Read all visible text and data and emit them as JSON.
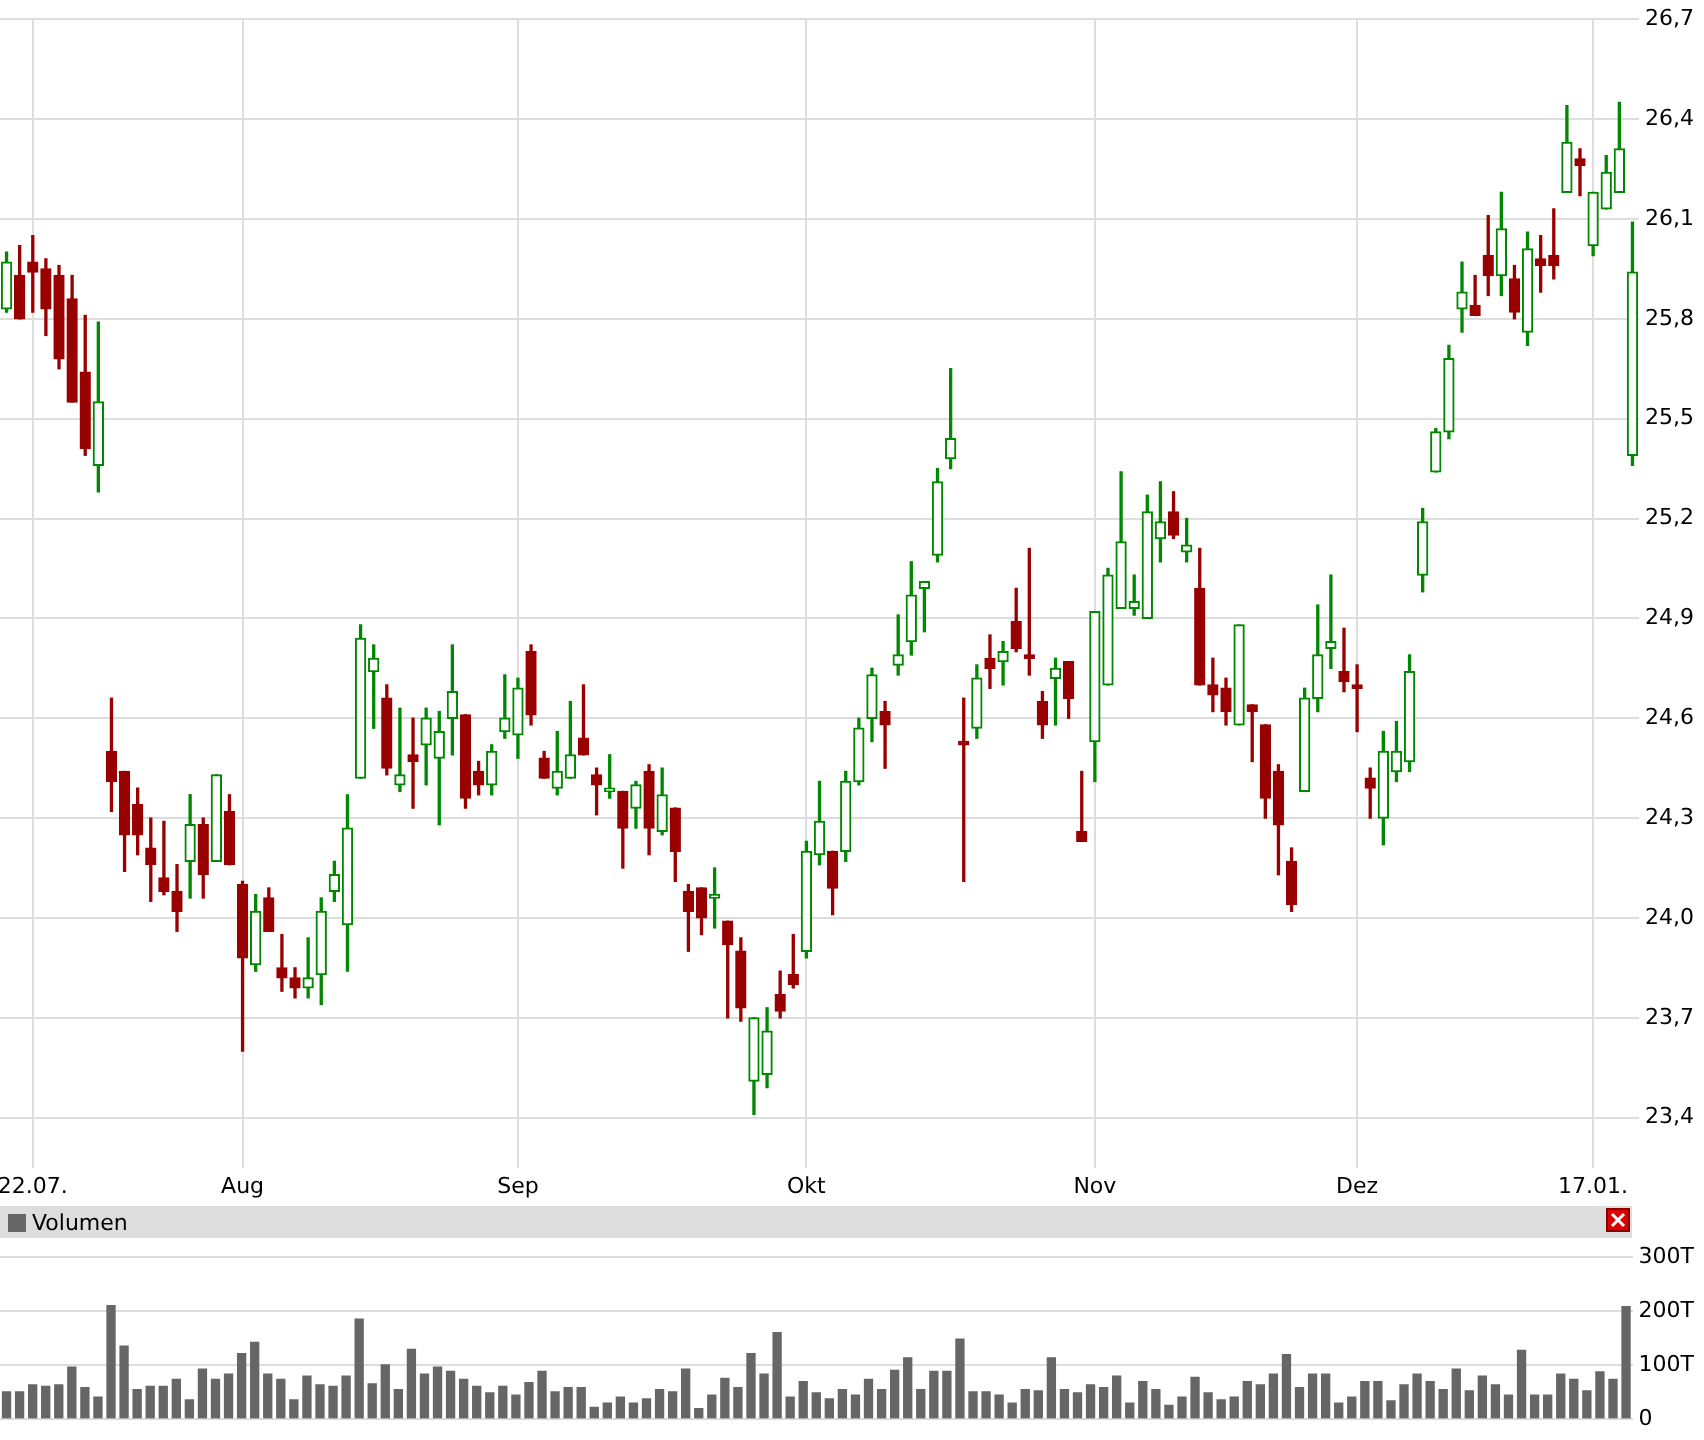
{
  "chart_data": [
    {
      "type": "candlestick",
      "categories": [
        null,
        null,
        "22.07.",
        null,
        null,
        null,
        null,
        null,
        null,
        null,
        null,
        null,
        null,
        null,
        null,
        null,
        null,
        null,
        "Aug",
        null,
        null,
        null,
        null,
        null,
        null,
        null,
        null,
        null,
        null,
        null,
        null,
        null,
        null,
        null,
        null,
        null,
        null,
        null,
        null,
        "Sep",
        null,
        null,
        null,
        null,
        null,
        null,
        null,
        null,
        null,
        null,
        null,
        null,
        null,
        null,
        null,
        null,
        null,
        null,
        null,
        null,
        null,
        "Okt",
        null,
        null,
        null,
        null,
        null,
        null,
        null,
        null,
        null,
        null,
        null,
        null,
        null,
        null,
        null,
        null,
        null,
        null,
        null,
        null,
        null,
        "Nov",
        null,
        null,
        null,
        null,
        null,
        null,
        null,
        null,
        null,
        null,
        null,
        null,
        null,
        null,
        null,
        null,
        null,
        null,
        null,
        "Dez",
        null,
        null,
        null,
        null,
        null,
        null,
        null,
        null,
        null,
        null,
        null,
        null,
        null,
        null,
        null,
        null,
        null,
        "17.01.",
        null,
        null,
        null
      ],
      "ohlc": [
        [
          25.83,
          26.0,
          25.82,
          25.97
        ],
        [
          25.93,
          26.02,
          25.8,
          25.8
        ],
        [
          25.97,
          26.05,
          25.82,
          25.94
        ],
        [
          25.95,
          25.98,
          25.75,
          25.83
        ],
        [
          25.93,
          25.96,
          25.65,
          25.68
        ],
        [
          25.86,
          25.93,
          25.55,
          25.55
        ],
        [
          25.64,
          25.81,
          25.39,
          25.41
        ],
        [
          25.36,
          25.79,
          25.28,
          25.55
        ],
        [
          24.5,
          24.66,
          24.32,
          24.41
        ],
        [
          24.44,
          24.44,
          24.14,
          24.25
        ],
        [
          24.34,
          24.39,
          24.19,
          24.25
        ],
        [
          24.21,
          24.3,
          24.05,
          24.16
        ],
        [
          24.12,
          24.29,
          24.07,
          24.08
        ],
        [
          24.08,
          24.16,
          23.96,
          24.02
        ],
        [
          24.17,
          24.37,
          24.06,
          24.28
        ],
        [
          24.28,
          24.3,
          24.06,
          24.13
        ],
        [
          24.17,
          24.43,
          24.17,
          24.43
        ],
        [
          24.32,
          24.37,
          24.16,
          24.16
        ],
        [
          24.1,
          24.11,
          23.6,
          23.88
        ],
        [
          23.86,
          24.07,
          23.84,
          24.02
        ],
        [
          24.06,
          24.09,
          23.96,
          23.96
        ],
        [
          23.85,
          23.95,
          23.78,
          23.82
        ],
        [
          23.82,
          23.85,
          23.76,
          23.79
        ],
        [
          23.79,
          23.94,
          23.76,
          23.82
        ],
        [
          23.83,
          24.06,
          23.74,
          24.02
        ],
        [
          24.08,
          24.17,
          24.05,
          24.13
        ],
        [
          23.98,
          24.37,
          23.84,
          24.27
        ],
        [
          24.42,
          24.88,
          24.42,
          24.84
        ],
        [
          24.74,
          24.82,
          24.57,
          24.78
        ],
        [
          24.66,
          24.7,
          24.43,
          24.45
        ],
        [
          24.4,
          24.63,
          24.38,
          24.43
        ],
        [
          24.49,
          24.6,
          24.33,
          24.47
        ],
        [
          24.52,
          24.63,
          24.4,
          24.6
        ],
        [
          24.48,
          24.62,
          24.28,
          24.56
        ],
        [
          24.6,
          24.82,
          24.49,
          24.68
        ],
        [
          24.61,
          24.61,
          24.33,
          24.36
        ],
        [
          24.44,
          24.47,
          24.37,
          24.4
        ],
        [
          24.4,
          24.52,
          24.37,
          24.5
        ],
        [
          24.56,
          24.73,
          24.54,
          24.6
        ],
        [
          24.55,
          24.72,
          24.48,
          24.69
        ],
        [
          24.8,
          24.82,
          24.58,
          24.61
        ],
        [
          24.48,
          24.5,
          24.42,
          24.42
        ],
        [
          24.39,
          24.56,
          24.37,
          24.44
        ],
        [
          24.42,
          24.65,
          24.42,
          24.49
        ],
        [
          24.54,
          24.7,
          24.49,
          24.49
        ],
        [
          24.43,
          24.45,
          24.31,
          24.4
        ],
        [
          24.38,
          24.49,
          24.36,
          24.39
        ],
        [
          24.38,
          24.38,
          24.15,
          24.27
        ],
        [
          24.33,
          24.41,
          24.27,
          24.4
        ],
        [
          24.44,
          24.46,
          24.19,
          24.27
        ],
        [
          24.26,
          24.45,
          24.25,
          24.37
        ],
        [
          24.33,
          24.33,
          24.11,
          24.2
        ],
        [
          24.08,
          24.1,
          23.9,
          24.02
        ],
        [
          24.09,
          24.09,
          23.95,
          24.0
        ],
        [
          24.06,
          24.15,
          23.97,
          24.07
        ],
        [
          23.99,
          23.99,
          23.7,
          23.92
        ],
        [
          23.9,
          23.94,
          23.69,
          23.73
        ],
        [
          23.51,
          23.7,
          23.41,
          23.7
        ],
        [
          23.53,
          23.73,
          23.49,
          23.66
        ],
        [
          23.77,
          23.84,
          23.7,
          23.72
        ],
        [
          23.83,
          23.95,
          23.79,
          23.8
        ],
        [
          23.9,
          24.23,
          23.88,
          24.2
        ],
        [
          24.19,
          24.41,
          24.16,
          24.29
        ],
        [
          24.2,
          24.2,
          24.01,
          24.09
        ],
        [
          24.2,
          24.44,
          24.17,
          24.41
        ],
        [
          24.41,
          24.6,
          24.4,
          24.57
        ],
        [
          24.6,
          24.75,
          24.53,
          24.73
        ],
        [
          24.62,
          24.65,
          24.45,
          24.58
        ],
        [
          24.76,
          24.91,
          24.73,
          24.79
        ],
        [
          24.83,
          25.07,
          24.79,
          24.97
        ],
        [
          24.99,
          25.01,
          24.86,
          25.01
        ],
        [
          25.09,
          25.35,
          25.07,
          25.31
        ],
        [
          25.38,
          25.65,
          25.35,
          25.44
        ],
        [
          24.53,
          24.66,
          24.11,
          24.52
        ],
        [
          24.57,
          24.76,
          24.54,
          24.72
        ],
        [
          24.78,
          24.85,
          24.69,
          24.75
        ],
        [
          24.77,
          24.83,
          24.7,
          24.8
        ],
        [
          24.89,
          24.99,
          24.8,
          24.81
        ],
        [
          24.79,
          25.11,
          24.73,
          24.78
        ],
        [
          24.65,
          24.68,
          24.54,
          24.58
        ],
        [
          24.72,
          24.78,
          24.58,
          24.75
        ],
        [
          24.77,
          24.77,
          24.6,
          24.66
        ],
        [
          24.26,
          24.44,
          24.23,
          24.23
        ],
        [
          24.53,
          24.92,
          24.41,
          24.92
        ],
        [
          24.7,
          25.05,
          24.7,
          25.03
        ],
        [
          24.93,
          25.34,
          24.93,
          25.13
        ],
        [
          24.93,
          25.03,
          24.91,
          24.95
        ],
        [
          24.9,
          25.27,
          24.9,
          25.22
        ],
        [
          25.14,
          25.31,
          25.07,
          25.19
        ],
        [
          25.22,
          25.28,
          25.14,
          25.15
        ],
        [
          25.1,
          25.2,
          25.07,
          25.12
        ],
        [
          24.99,
          25.11,
          24.7,
          24.7
        ],
        [
          24.7,
          24.78,
          24.62,
          24.67
        ],
        [
          24.69,
          24.72,
          24.58,
          24.62
        ],
        [
          24.58,
          24.88,
          24.58,
          24.88
        ],
        [
          24.64,
          24.64,
          24.47,
          24.62
        ],
        [
          24.58,
          24.58,
          24.3,
          24.36
        ],
        [
          24.44,
          24.46,
          24.13,
          24.28
        ],
        [
          24.17,
          24.21,
          24.02,
          24.04
        ],
        [
          24.38,
          24.69,
          24.38,
          24.66
        ],
        [
          24.66,
          24.94,
          24.62,
          24.79
        ],
        [
          24.81,
          25.03,
          24.75,
          24.83
        ],
        [
          24.74,
          24.87,
          24.68,
          24.71
        ],
        [
          24.7,
          24.76,
          24.56,
          24.69
        ],
        [
          24.42,
          24.45,
          24.3,
          24.39
        ],
        [
          24.3,
          24.56,
          24.22,
          24.5
        ],
        [
          24.44,
          24.59,
          24.41,
          24.5
        ],
        [
          24.47,
          24.79,
          24.44,
          24.74
        ],
        [
          25.03,
          25.23,
          24.98,
          25.19
        ],
        [
          25.34,
          25.47,
          25.34,
          25.46
        ],
        [
          25.46,
          25.72,
          25.44,
          25.68
        ],
        [
          25.83,
          25.97,
          25.76,
          25.88
        ],
        [
          25.84,
          25.93,
          25.81,
          25.81
        ],
        [
          25.99,
          26.11,
          25.87,
          25.93
        ],
        [
          25.93,
          26.18,
          25.87,
          26.07
        ],
        [
          25.92,
          25.96,
          25.8,
          25.82
        ],
        [
          25.76,
          26.06,
          25.72,
          26.01
        ],
        [
          25.98,
          26.05,
          25.88,
          25.96
        ],
        [
          25.99,
          26.13,
          25.92,
          25.96
        ],
        [
          26.18,
          26.44,
          26.18,
          26.33
        ],
        [
          26.28,
          26.31,
          26.17,
          26.26
        ],
        [
          26.02,
          26.18,
          25.99,
          26.18
        ],
        [
          26.13,
          26.29,
          26.13,
          26.24
        ],
        [
          26.18,
          26.45,
          26.18,
          26.31
        ],
        [
          25.39,
          26.09,
          25.36,
          25.94
        ]
      ],
      "colors": [
        "#008800",
        "#990000",
        "#990000",
        "#990000",
        "#990000",
        "#990000",
        "#990000",
        "#008800",
        "#990000",
        "#990000",
        "#990000",
        "#990000",
        "#990000",
        "#990000",
        "#008800",
        "#990000",
        "#008800",
        "#990000",
        "#990000",
        "#008800",
        "#990000",
        "#990000",
        "#990000",
        "#008800",
        "#008800",
        "#008800",
        "#008800",
        "#008800",
        "#008800",
        "#990000",
        "#008800",
        "#990000",
        "#008800",
        "#008800",
        "#008800",
        "#990000",
        "#990000",
        "#008800",
        "#008800",
        "#008800",
        "#990000",
        "#990000",
        "#008800",
        "#008800",
        "#990000",
        "#990000",
        "#008800",
        "#990000",
        "#008800",
        "#990000",
        "#008800",
        "#990000",
        "#990000",
        "#990000",
        "#008800",
        "#990000",
        "#990000",
        "#008800",
        "#008800",
        "#990000",
        "#990000",
        "#008800",
        "#008800",
        "#990000",
        "#008800",
        "#008800",
        "#008800",
        "#990000",
        "#008800",
        "#008800",
        "#008800",
        "#008800",
        "#008800",
        "#990000",
        "#008800",
        "#990000",
        "#008800",
        "#990000",
        "#990000",
        "#990000",
        "#008800",
        "#990000",
        "#990000",
        "#008800",
        "#008800",
        "#008800",
        "#008800",
        "#008800",
        "#008800",
        "#990000",
        "#008800",
        "#990000",
        "#990000",
        "#990000",
        "#008800",
        "#990000",
        "#990000",
        "#990000",
        "#990000",
        "#008800",
        "#008800",
        "#008800",
        "#990000",
        "#990000",
        "#990000",
        "#008800",
        "#008800",
        "#008800",
        "#008800",
        "#008800",
        "#008800",
        "#008800",
        "#990000",
        "#990000",
        "#008800",
        "#990000",
        "#008800",
        "#990000",
        "#990000",
        "#008800",
        "#990000",
        "#008800",
        "#008800",
        "#008800",
        "#008800"
      ],
      "ylim": [
        23.25,
        26.7
      ],
      "yticks": [
        {
          "value": 23.4,
          "label": "23,4"
        },
        {
          "value": 23.7,
          "label": "23,7"
        },
        {
          "value": 24.0,
          "label": "24,0"
        },
        {
          "value": 24.3,
          "label": "24,3"
        },
        {
          "value": 24.6,
          "label": "24,6"
        },
        {
          "value": 24.9,
          "label": "24,9"
        },
        {
          "value": 25.2,
          "label": "25,2"
        },
        {
          "value": 25.5,
          "label": "25,5"
        },
        {
          "value": 25.8,
          "label": "25,8"
        },
        {
          "value": 26.1,
          "label": "26,1"
        },
        {
          "value": 26.4,
          "label": "26,4"
        },
        {
          "value": 26.7,
          "label": "26,7"
        }
      ],
      "grid": true
    },
    {
      "type": "bar",
      "categories": [
        null,
        null,
        null,
        null,
        null,
        null,
        null,
        null,
        null,
        null,
        null,
        null,
        null,
        null,
        null,
        null,
        null,
        null,
        null,
        null,
        null,
        null,
        null,
        null,
        null,
        null,
        null,
        null,
        null,
        null,
        null,
        null,
        null,
        null,
        null,
        null,
        null,
        null,
        null,
        null,
        null,
        null,
        null,
        null,
        null,
        null,
        null,
        null,
        null,
        null,
        null,
        null,
        null,
        null,
        null,
        null,
        null,
        null,
        null,
        null,
        null,
        null,
        null,
        null,
        null,
        null,
        null,
        null,
        null,
        null,
        null,
        null,
        null,
        null,
        null,
        null,
        null,
        null,
        null,
        null,
        null,
        null,
        null,
        null,
        null,
        null,
        null,
        null,
        null,
        null,
        null,
        null,
        null,
        null,
        null,
        null,
        null,
        null,
        null,
        null,
        null,
        null,
        null,
        null,
        null,
        null,
        null,
        null,
        null,
        null,
        null,
        null,
        null,
        null,
        null,
        null,
        null,
        null,
        null,
        null,
        null,
        null,
        null,
        null,
        null
      ],
      "series": [
        {
          "name": "Volumen",
          "color": "#666666",
          "values": [
            50,
            50,
            63,
            60,
            63,
            96,
            58,
            40,
            210,
            135,
            54,
            60,
            60,
            73,
            35,
            92,
            73,
            83,
            121,
            142,
            83,
            73,
            35,
            79,
            63,
            60,
            79,
            185,
            65,
            100,
            54,
            129,
            83,
            96,
            88,
            73,
            60,
            48,
            60,
            44,
            67,
            88,
            50,
            58,
            58,
            21,
            29,
            40,
            29,
            37,
            54,
            50,
            92,
            19,
            44,
            75,
            58,
            121,
            83,
            160,
            40,
            69,
            48,
            37,
            54,
            44,
            73,
            54,
            90,
            113,
            54,
            88,
            88,
            148,
            50,
            50,
            44,
            29,
            54,
            52,
            113,
            54,
            48,
            63,
            58,
            79,
            29,
            69,
            54,
            25,
            40,
            77,
            48,
            35,
            40,
            69,
            63,
            83,
            119,
            58,
            83,
            83,
            29,
            40,
            69,
            69,
            33,
            63,
            83,
            69,
            54,
            92,
            52,
            79,
            63,
            44,
            127,
            44,
            44,
            83,
            73,
            52,
            87,
            73,
            208
          ]
        }
      ],
      "ylim": [
        0,
        300
      ],
      "yticks": [
        0,
        {
          "value": 100,
          "label": "100T"
        },
        {
          "value": 200,
          "label": "200T"
        },
        {
          "value": 300,
          "label": "300T"
        }
      ],
      "grid": "y",
      "legend": "top left",
      "tick_labels": "y"
    }
  ]
}
